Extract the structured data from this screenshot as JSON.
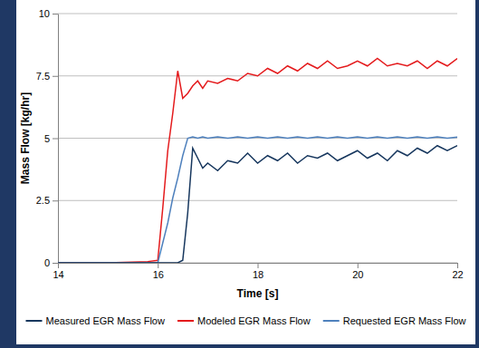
{
  "chart_data": {
    "type": "line",
    "x_label": "Time [s]",
    "y_label": "Mass Flow [kg/hr]",
    "x": [
      14,
      15,
      15.8,
      16.0,
      16.1,
      16.2,
      16.3,
      16.4,
      16.5,
      16.6,
      16.7,
      16.8,
      16.9,
      17.0,
      17.2,
      17.4,
      17.6,
      17.8,
      18.0,
      18.2,
      18.4,
      18.6,
      18.8,
      19.0,
      19.2,
      19.4,
      19.6,
      19.8,
      20.0,
      20.2,
      20.4,
      20.6,
      20.8,
      21.0,
      21.2,
      21.4,
      21.6,
      21.8,
      22.0
    ],
    "series": [
      {
        "name": "Measured EGR Mass Flow",
        "color": "#17375e",
        "values": [
          0,
          0,
          0,
          0,
          0,
          0,
          0,
          0,
          0.1,
          2.0,
          4.6,
          4.2,
          3.8,
          4.0,
          3.7,
          4.1,
          4.0,
          4.4,
          4.0,
          4.3,
          4.1,
          4.4,
          4.0,
          4.3,
          4.2,
          4.4,
          4.1,
          4.3,
          4.5,
          4.2,
          4.4,
          4.1,
          4.5,
          4.3,
          4.6,
          4.4,
          4.7,
          4.5,
          4.7
        ]
      },
      {
        "name": "Modeled EGR Mass Flow",
        "color": "#e41a1c",
        "values": [
          0,
          0,
          0.05,
          0.1,
          2.2,
          4.5,
          6.0,
          7.7,
          6.6,
          6.8,
          7.1,
          7.3,
          7.0,
          7.3,
          7.2,
          7.4,
          7.3,
          7.6,
          7.5,
          7.8,
          7.6,
          7.9,
          7.7,
          8.0,
          7.8,
          8.1,
          7.8,
          7.9,
          8.1,
          7.9,
          8.2,
          7.9,
          8.0,
          7.9,
          8.1,
          7.8,
          8.1,
          7.9,
          8.2
        ]
      },
      {
        "name": "Requested EGR Mass Flow",
        "color": "#4f81bd",
        "values": [
          0,
          0,
          0,
          0,
          0.8,
          1.6,
          2.6,
          3.4,
          4.3,
          5.0,
          5.05,
          5.0,
          5.05,
          5.0,
          5.05,
          5.0,
          5.05,
          5.0,
          5.05,
          5.0,
          5.05,
          5.0,
          5.05,
          5.0,
          5.05,
          5.0,
          5.05,
          5.0,
          5.05,
          5.0,
          5.05,
          5.0,
          5.05,
          5.0,
          5.05,
          5.0,
          5.05,
          5.0,
          5.05
        ]
      }
    ],
    "xlim": [
      14,
      22
    ],
    "xticks": [
      14,
      16,
      18,
      20,
      22
    ],
    "ylim": [
      0,
      10
    ],
    "yticks": [
      0,
      2.5,
      5,
      7.5,
      10
    ],
    "grid": true,
    "legend": "bottom"
  }
}
